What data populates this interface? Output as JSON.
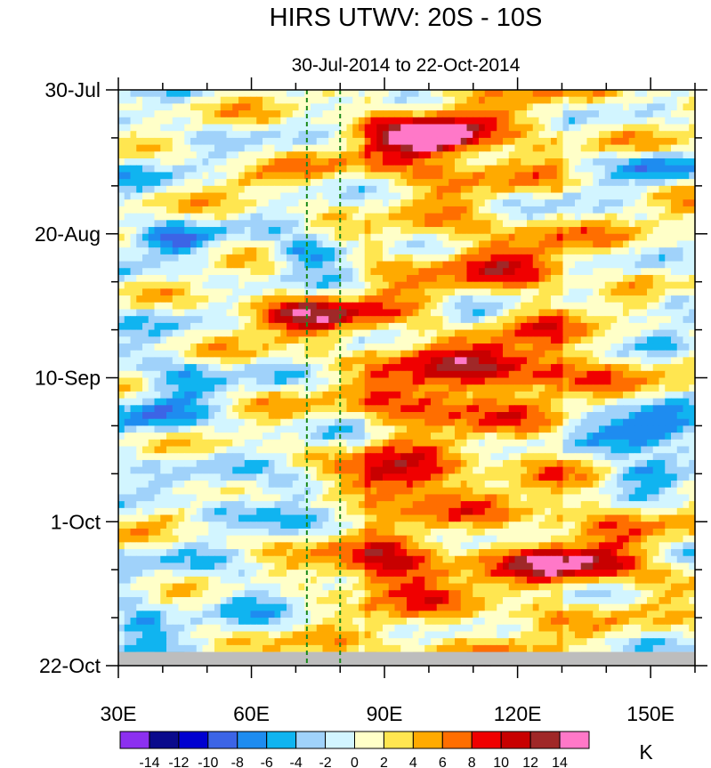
{
  "chart_data": {
    "type": "heatmap",
    "title": "HIRS UTWV: 20S - 10S",
    "subtitle": "30-Jul-2014 to 22-Oct-2014",
    "x_axis": {
      "range": [
        30,
        160
      ],
      "ticks": [
        30,
        60,
        90,
        120,
        150
      ],
      "tick_labels": [
        "30E",
        "60E",
        "90E",
        "120E",
        "150E"
      ]
    },
    "y_axis": {
      "range_days": [
        0,
        84
      ],
      "ticks": [
        0,
        21,
        42,
        63,
        84
      ],
      "tick_labels": [
        "30-Jul",
        "20-Aug",
        "10-Sep",
        "1-Oct",
        "22-Oct"
      ]
    },
    "reference_lines_lon": [
      72.5,
      80
    ],
    "missing_band_days": [
      82,
      84
    ],
    "colorbar": {
      "unit": "K",
      "levels": [
        -14,
        -12,
        -10,
        -8,
        -6,
        -4,
        -2,
        0,
        2,
        4,
        6,
        8,
        10,
        12,
        14
      ],
      "level_labels": [
        "-14",
        "-12",
        "-10",
        "-8",
        "-6",
        "-4",
        "-2",
        "0",
        "2",
        "4",
        "6",
        "8",
        "10",
        "12",
        "14"
      ],
      "colors": [
        "#8c30f0",
        "#0a0a8c",
        "#0000d0",
        "#3c64e6",
        "#1e8cf0",
        "#10b4f0",
        "#a0d2fa",
        "#d2f5ff",
        "#ffffc8",
        "#ffe650",
        "#ffaa00",
        "#ff6e00",
        "#f00000",
        "#c80000",
        "#a02828",
        "#ff78c8"
      ]
    },
    "blobs": [
      {
        "lon": 102,
        "day": 7,
        "amp": 12,
        "rx": 9,
        "ry": 2
      },
      {
        "lon": 98,
        "day": 8,
        "amp": 6,
        "rx": 16,
        "ry": 4
      },
      {
        "lon": 150,
        "day": 11,
        "amp": -7,
        "rx": 10,
        "ry": 2.5
      },
      {
        "lon": 88,
        "day": 19,
        "amp": -5,
        "rx": 7,
        "ry": 2
      },
      {
        "lon": 72,
        "day": 24,
        "amp": -10,
        "rx": 9,
        "ry": 2
      },
      {
        "lon": 42,
        "day": 22,
        "amp": -6,
        "rx": 8,
        "ry": 2
      },
      {
        "lon": 72,
        "day": 33,
        "amp": 9,
        "rx": 16,
        "ry": 3
      },
      {
        "lon": 108,
        "day": 33,
        "amp": -5,
        "rx": 10,
        "ry": 2
      },
      {
        "lon": 120,
        "day": 40,
        "amp": 7,
        "rx": 22,
        "ry": 4
      },
      {
        "lon": 100,
        "day": 45,
        "amp": 7,
        "rx": 12,
        "ry": 3
      },
      {
        "lon": 150,
        "day": 50,
        "amp": -12,
        "rx": 12,
        "ry": 3
      },
      {
        "lon": 150,
        "day": 56,
        "amp": -9,
        "rx": 9,
        "ry": 2
      },
      {
        "lon": 92,
        "day": 57,
        "amp": 10,
        "rx": 12,
        "ry": 3
      },
      {
        "lon": 72,
        "day": 58,
        "amp": -6,
        "rx": 8,
        "ry": 2.5
      },
      {
        "lon": 55,
        "day": 61,
        "amp": -7,
        "rx": 10,
        "ry": 2.5
      },
      {
        "lon": 40,
        "day": 48,
        "amp": -5,
        "rx": 8,
        "ry": 3
      },
      {
        "lon": 90,
        "day": 70,
        "amp": 9,
        "rx": 14,
        "ry": 3
      },
      {
        "lon": 135,
        "day": 69,
        "amp": 11,
        "rx": 14,
        "ry": 3
      },
      {
        "lon": 60,
        "day": 73,
        "amp": -4,
        "rx": 12,
        "ry": 3
      },
      {
        "lon": 35,
        "day": 78,
        "amp": -7,
        "rx": 6,
        "ry": 2
      },
      {
        "lon": 42,
        "day": 62,
        "amp": 5,
        "rx": 8,
        "ry": 2
      },
      {
        "lon": 120,
        "day": 25,
        "amp": 4,
        "rx": 14,
        "ry": 4
      },
      {
        "lon": 155,
        "day": 37,
        "amp": -8,
        "rx": 7,
        "ry": 2
      },
      {
        "lon": 155,
        "day": 30,
        "amp": -6,
        "rx": 6,
        "ry": 2
      },
      {
        "lon": 60,
        "day": 13,
        "amp": 4,
        "rx": 8,
        "ry": 2
      },
      {
        "lon": 45,
        "day": 42,
        "amp": -4,
        "rx": 9,
        "ry": 4
      },
      {
        "lon": 140,
        "day": 62,
        "amp": 3,
        "rx": 12,
        "ry": 3
      },
      {
        "lon": 125,
        "day": 15,
        "amp": -3,
        "rx": 12,
        "ry": 3
      }
    ]
  }
}
